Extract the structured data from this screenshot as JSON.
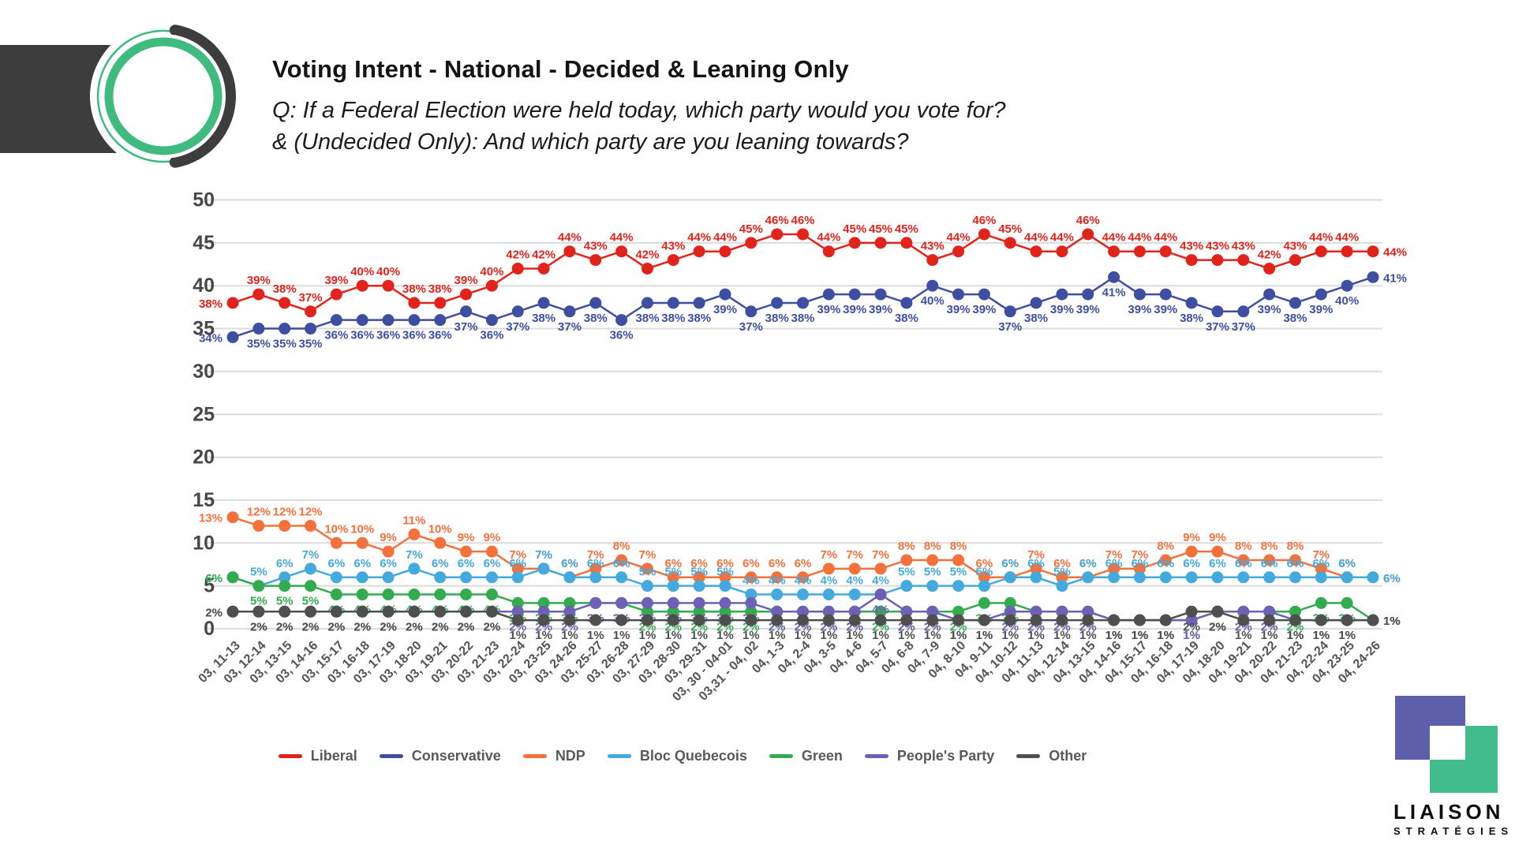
{
  "header": {
    "title": "Voting Intent - National - Decided & Leaning Only",
    "subtitle_line1": "Q: If a Federal Election were held today, which party would you vote for?",
    "subtitle_line2": "& (Undecided Only): And which party are you leaning towards?"
  },
  "branding": {
    "company_name": "LIAISON",
    "company_tagline": "STRATÉGIES"
  },
  "chart_data": {
    "type": "line",
    "title": "Voting Intent - National - Decided & Leaning Only",
    "value_suffix": "%",
    "ylim": [
      0,
      50
    ],
    "yticks": [
      0,
      5,
      10,
      15,
      20,
      25,
      30,
      35,
      40,
      45,
      50
    ],
    "grid": true,
    "legend_position": "bottom",
    "categories": [
      "03, 11-13",
      "03, 12-14",
      "03, 13-15",
      "03, 14-16",
      "03, 15-17",
      "03, 16-18",
      "03, 17-19",
      "03, 18-20",
      "03, 19-21",
      "03, 20-22",
      "03, 21-23",
      "03, 22-24",
      "03, 23-25",
      "03, 24-26",
      "03, 25-27",
      "03, 26-28",
      "03, 27-29",
      "03, 28-30",
      "03, 29-31",
      "03, 30 - 04-01",
      "03,31 - 04, 02",
      "04, 1-3",
      "04, 2-4",
      "04, 3-5",
      "04, 4-6",
      "04, 5-7",
      "04, 6-8",
      "04, 7-9",
      "04, 8-10",
      "04, 9-11",
      "04, 10-12",
      "04, 11-13",
      "04, 12-14",
      "04, 13-15",
      "04, 14-16",
      "04, 15-17",
      "04, 16-18",
      "04, 17-19",
      "04, 18-20",
      "04, 19-21",
      "04, 20-22",
      "04, 21-23",
      "04, 22-24",
      "04, 23-25",
      "04, 24-26"
    ],
    "series": [
      {
        "name": "Liberal",
        "color": "#e2231b",
        "label_side": "above",
        "values": [
          38,
          39,
          38,
          37,
          39,
          40,
          40,
          38,
          38,
          39,
          40,
          42,
          42,
          44,
          43,
          44,
          42,
          43,
          44,
          44,
          45,
          46,
          46,
          44,
          45,
          45,
          45,
          43,
          44,
          46,
          45,
          44,
          44,
          46,
          44,
          44,
          44,
          43,
          43,
          43,
          42,
          43,
          44,
          44,
          44
        ]
      },
      {
        "name": "Conservative",
        "color": "#3e4fa1",
        "label_side": "below",
        "values": [
          34,
          35,
          35,
          35,
          36,
          36,
          36,
          36,
          36,
          37,
          36,
          37,
          38,
          37,
          38,
          36,
          38,
          38,
          38,
          39,
          37,
          38,
          38,
          39,
          39,
          39,
          38,
          40,
          39,
          39,
          37,
          38,
          39,
          39,
          41,
          39,
          39,
          38,
          37,
          37,
          39,
          38,
          39,
          40,
          41
        ]
      },
      {
        "name": "NDP",
        "color": "#f4713c",
        "label_side": "above",
        "values": [
          13,
          12,
          12,
          12,
          10,
          10,
          9,
          11,
          10,
          9,
          9,
          7,
          7,
          6,
          7,
          8,
          7,
          6,
          6,
          6,
          6,
          6,
          6,
          7,
          7,
          7,
          8,
          8,
          8,
          6,
          6,
          7,
          6,
          6,
          7,
          7,
          8,
          9,
          9,
          8,
          8,
          8,
          7,
          6,
          6
        ]
      },
      {
        "name": "Bloc Quebecois",
        "color": "#44aadd",
        "label_side": "above",
        "values": [
          6,
          5,
          6,
          7,
          6,
          6,
          6,
          7,
          6,
          6,
          6,
          6,
          7,
          6,
          6,
          6,
          5,
          5,
          5,
          5,
          4,
          4,
          4,
          4,
          4,
          4,
          5,
          5,
          5,
          5,
          6,
          6,
          5,
          6,
          6,
          6,
          6,
          6,
          6,
          6,
          6,
          6,
          6,
          6,
          6
        ]
      },
      {
        "name": "Green",
        "color": "#33ab4f",
        "label_side": "below",
        "values": [
          6,
          5,
          5,
          5,
          4,
          4,
          4,
          4,
          4,
          4,
          4,
          3,
          3,
          3,
          3,
          3,
          2,
          2,
          2,
          2,
          2,
          2,
          2,
          2,
          2,
          2,
          2,
          2,
          2,
          3,
          3,
          2,
          2,
          2,
          1,
          1,
          1,
          1,
          2,
          2,
          2,
          2,
          3,
          3,
          1
        ]
      },
      {
        "name": "People's Party",
        "color": "#6c61b4",
        "label_side": "below",
        "values": [
          2,
          2,
          2,
          2,
          2,
          2,
          2,
          2,
          2,
          2,
          2,
          2,
          2,
          2,
          3,
          3,
          3,
          3,
          3,
          3,
          3,
          2,
          2,
          2,
          2,
          4,
          2,
          2,
          1,
          1,
          2,
          2,
          2,
          2,
          1,
          1,
          1,
          1,
          2,
          2,
          2,
          1,
          1,
          1,
          1
        ]
      },
      {
        "name": "Other",
        "color": "#4f4f4f",
        "label_side": "below",
        "values": [
          2,
          2,
          2,
          2,
          2,
          2,
          2,
          2,
          2,
          2,
          2,
          1,
          1,
          1,
          1,
          1,
          1,
          1,
          1,
          1,
          1,
          1,
          1,
          1,
          1,
          1,
          1,
          1,
          1,
          1,
          1,
          1,
          1,
          1,
          1,
          1,
          1,
          2,
          2,
          1,
          1,
          1,
          1,
          1,
          1
        ]
      }
    ]
  }
}
